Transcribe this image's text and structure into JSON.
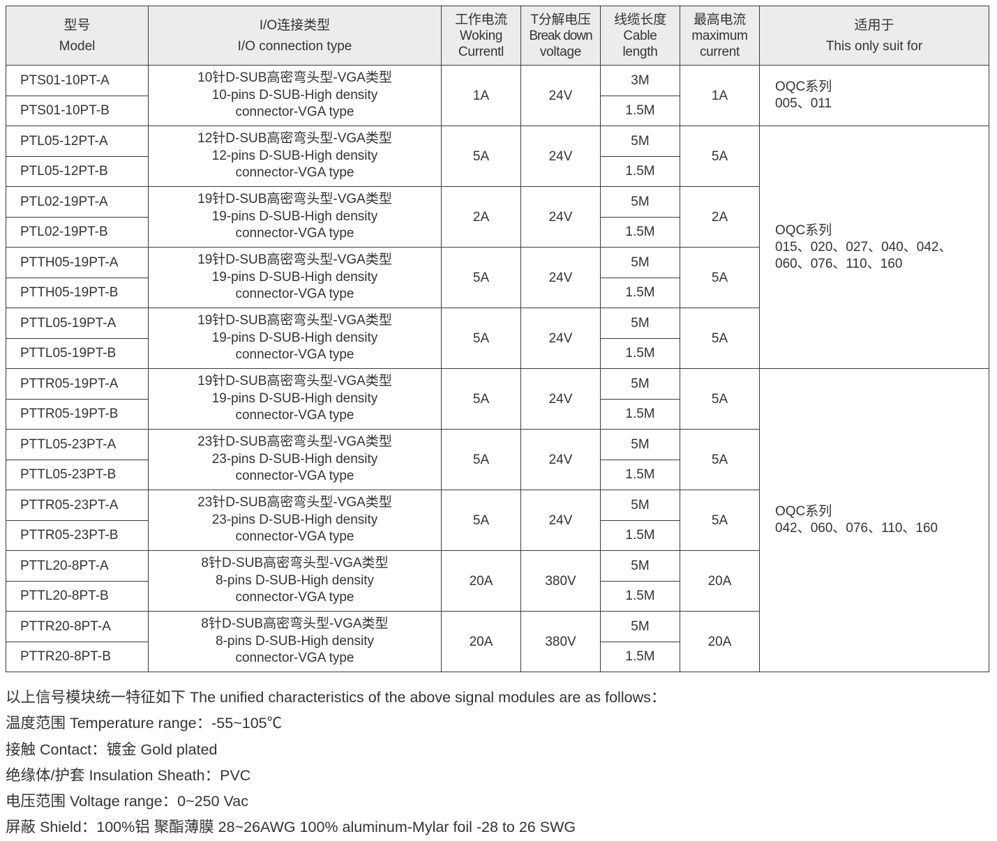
{
  "header": {
    "model": [
      "型号",
      "Model"
    ],
    "io_type": [
      "I/O连接类型",
      "I/O connection type"
    ],
    "working_current": [
      "工作电流",
      "Woking",
      "Currentl"
    ],
    "breakdown_voltage": [
      "T分解电压",
      "Break down",
      "voltage"
    ],
    "cable_length": [
      "线缆长度",
      "Cable",
      "length"
    ],
    "max_current": [
      "最高电流",
      "maximum",
      "current"
    ],
    "suit_for": [
      "适用于",
      "This only suit for"
    ]
  },
  "groups": [
    {
      "models": [
        "PTS01-10PT-A",
        "PTS01-10PT-B"
      ],
      "type": [
        "10针D-SUB高密弯头型-VGA类型",
        "10-pins D-SUB-High density",
        "connector-VGA type"
      ],
      "current": "1A",
      "voltage": "24V",
      "lengths": [
        "3M",
        "1.5M"
      ],
      "max": "1A"
    },
    {
      "models": [
        "PTL05-12PT-A",
        "PTL05-12PT-B"
      ],
      "type": [
        "12针D-SUB高密弯头型-VGA类型",
        "12-pins D-SUB-High density",
        "connector-VGA type"
      ],
      "current": "5A",
      "voltage": "24V",
      "lengths": [
        "5M",
        "1.5M"
      ],
      "max": "5A"
    },
    {
      "models": [
        "PTL02-19PT-A",
        "PTL02-19PT-B"
      ],
      "type": [
        "19针D-SUB高密弯头型-VGA类型",
        "19-pins D-SUB-High density",
        "connector-VGA type"
      ],
      "current": "2A",
      "voltage": "24V",
      "lengths": [
        "5M",
        "1.5M"
      ],
      "max": "2A"
    },
    {
      "models": [
        "PTTH05-19PT-A",
        "PTTH05-19PT-B"
      ],
      "type": [
        "19针D-SUB高密弯头型-VGA类型",
        "19-pins D-SUB-High density",
        "connector-VGA type"
      ],
      "current": "5A",
      "voltage": "24V",
      "lengths": [
        "5M",
        "1.5M"
      ],
      "max": "5A"
    },
    {
      "models": [
        "PTTL05-19PT-A",
        "PTTL05-19PT-B"
      ],
      "type": [
        "19针D-SUB高密弯头型-VGA类型",
        "19-pins D-SUB-High density",
        "connector-VGA type"
      ],
      "current": "5A",
      "voltage": "24V",
      "lengths": [
        "5M",
        "1.5M"
      ],
      "max": "5A"
    },
    {
      "models": [
        "PTTR05-19PT-A",
        "PTTR05-19PT-B"
      ],
      "type": [
        "19针D-SUB高密弯头型-VGA类型",
        "19-pins D-SUB-High density",
        "connector-VGA type"
      ],
      "current": "5A",
      "voltage": "24V",
      "lengths": [
        "5M",
        "1.5M"
      ],
      "max": "5A"
    },
    {
      "models": [
        "PTTL05-23PT-A",
        "PTTL05-23PT-B"
      ],
      "type": [
        "23针D-SUB高密弯头型-VGA类型",
        "23-pins D-SUB-High density",
        "connector-VGA type"
      ],
      "current": "5A",
      "voltage": "24V",
      "lengths": [
        "5M",
        "1.5M"
      ],
      "max": "5A"
    },
    {
      "models": [
        "PTTR05-23PT-A",
        "PTTR05-23PT-B"
      ],
      "type": [
        "23针D-SUB高密弯头型-VGA类型",
        "23-pins D-SUB-High density",
        "connector-VGA type"
      ],
      "current": "5A",
      "voltage": "24V",
      "lengths": [
        "5M",
        "1.5M"
      ],
      "max": "5A"
    },
    {
      "models": [
        "PTTL20-8PT-A",
        "PTTL20-8PT-B"
      ],
      "type": [
        "8针D-SUB高密弯头型-VGA类型",
        "8-pins D-SUB-High density",
        "connector-VGA type"
      ],
      "current": "20A",
      "voltage": "380V",
      "lengths": [
        "5M",
        "1.5M"
      ],
      "max": "20A"
    },
    {
      "models": [
        "PTTR20-8PT-A",
        "PTTR20-8PT-B"
      ],
      "type": [
        "8针D-SUB高密弯头型-VGA类型",
        "8-pins D-SUB-High density",
        "connector-VGA type"
      ],
      "current": "20A",
      "voltage": "380V",
      "lengths": [
        "5M",
        "1.5M"
      ],
      "max": "20A"
    }
  ],
  "suit_for": [
    {
      "group_count": 1,
      "lines": [
        "OQC系列",
        "005、011"
      ]
    },
    {
      "group_count": 4,
      "lines": [
        "OQC系列",
        "015、020、027、040、042、",
        "060、076、110、160"
      ]
    },
    {
      "group_count": 5,
      "lines": [
        "OQC系列",
        "042、060、076、110、160"
      ]
    }
  ],
  "notes": [
    "以上信号模块统一特征如下 The unified characteristics of the above signal modules are as follows：",
    "温度范围 Temperature range：-55~105℃",
    "接触 Contact：镀金 Gold plated",
    "绝缘体/护套  Insulation Sheath：PVC",
    "电压范围  Voltage range：0~250 Vac",
    "屏蔽 Shield：100%铝 聚酯薄膜 28~26AWG 100% aluminum-Mylar foil -28 to 26 SWG"
  ]
}
